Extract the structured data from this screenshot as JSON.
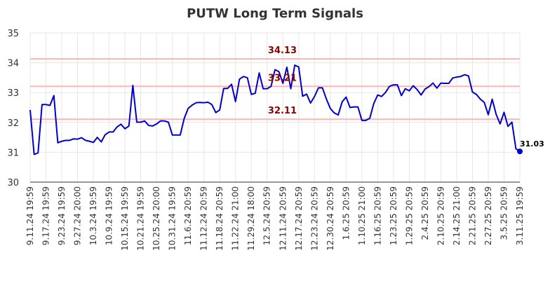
{
  "chart_data": {
    "type": "line",
    "title": "PUTW Long Term Signals",
    "xlabel": "",
    "ylabel": "",
    "ylim": [
      30,
      35
    ],
    "yticks": [
      30,
      31,
      32,
      33,
      34,
      35
    ],
    "grid": true,
    "line_color": "#0000cc",
    "hline_color": "#ffb6b6",
    "hline_label_color": "#8b0000",
    "x_tick_labels": [
      "9.11.24 19:59",
      "9.17.24 19:59",
      "9.23.24 19:59",
      "9.27.24 20:00",
      "10.3.24 19:59",
      "10.9.24 19:59",
      "10.15.24 19:59",
      "10.21.24 19:59",
      "10.25.24 20:00",
      "10.31.24 19:59",
      "11.6.24 20:59",
      "11.12.24 20:59",
      "11.18.24 20:59",
      "11.22.24 21:00",
      "11.29.24 18:00",
      "12.5.24 20:59",
      "12.11.24 20:59",
      "12.17.24 20:59",
      "12.23.24 20:59",
      "12.30.24 20:59",
      "1.6.25 20:59",
      "1.10.25 21:00",
      "1.16.25 20:59",
      "1.23.25 20:59",
      "1.29.25 20:59",
      "2.4.25 20:59",
      "2.10.25 20:59",
      "2.14.25 21:00",
      "2.21.25 20:59",
      "2.27.25 20:59",
      "3.5.25 20:59",
      "3.11.25 19:59"
    ],
    "tick_every": 4,
    "horizontal_lines": [
      {
        "value": 34.13,
        "label": "34.13"
      },
      {
        "value": 33.21,
        "label": "33.21"
      },
      {
        "value": 32.11,
        "label": "32.11"
      }
    ],
    "last_point": {
      "value": 31.03,
      "label": "31.03"
    },
    "series": [
      {
        "values": [
          32.42,
          30.93,
          30.98,
          32.6,
          32.6,
          32.57,
          32.9,
          31.32,
          31.37,
          31.4,
          31.4,
          31.45,
          31.44,
          31.49,
          31.4,
          31.37,
          31.33,
          31.5,
          31.35,
          31.59,
          31.68,
          31.68,
          31.85,
          31.94,
          31.79,
          31.88,
          33.24,
          32.01,
          32.01,
          32.05,
          31.9,
          31.88,
          31.95,
          32.05,
          32.05,
          32.01,
          31.58,
          31.58,
          31.58,
          32.13,
          32.47,
          32.58,
          32.66,
          32.67,
          32.66,
          32.68,
          32.6,
          32.33,
          32.42,
          33.14,
          33.14,
          33.28,
          32.7,
          33.45,
          33.54,
          33.5,
          32.94,
          32.98,
          33.66,
          33.13,
          33.13,
          33.21,
          33.77,
          33.7,
          33.31,
          33.85,
          33.13,
          33.92,
          33.86,
          32.88,
          32.95,
          32.65,
          32.87,
          33.16,
          33.16,
          32.79,
          32.47,
          32.32,
          32.25,
          32.69,
          32.85,
          32.5,
          32.52,
          32.52,
          32.07,
          32.07,
          32.14,
          32.63,
          32.92,
          32.87,
          33.01,
          33.21,
          33.26,
          33.26,
          32.9,
          33.13,
          33.06,
          33.23,
          33.1,
          32.92,
          33.12,
          33.2,
          33.32,
          33.15,
          33.32,
          33.31,
          33.31,
          33.49,
          33.52,
          33.54,
          33.6,
          33.56,
          33.02,
          32.94,
          32.78,
          32.67,
          32.26,
          32.78,
          32.27,
          31.95,
          32.34,
          31.87,
          32.01,
          31.12,
          31.03
        ]
      }
    ]
  }
}
